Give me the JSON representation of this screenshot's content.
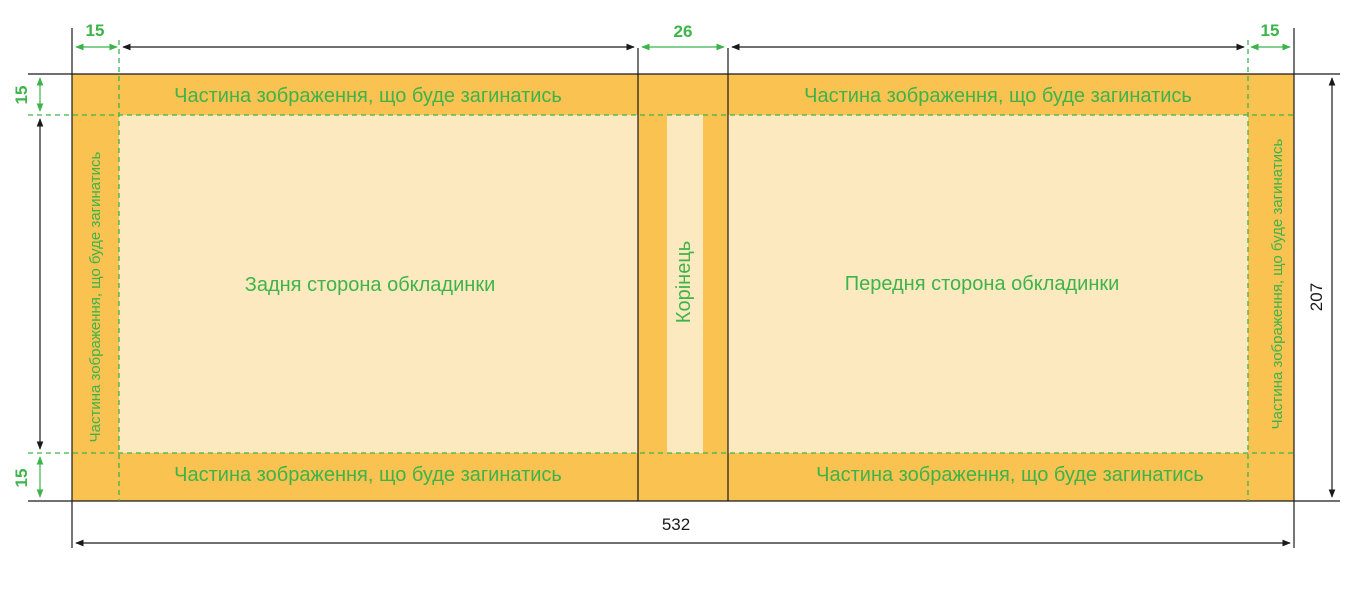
{
  "colors": {
    "fold_area": "#f9c251",
    "cover_area": "#fde9c0",
    "label_green": "#3cb44a",
    "line": "#1a1a1a"
  },
  "labels": {
    "fold_top_left": "Частина зображення, що буде загинатись",
    "fold_top_right": "Частина зображення, що буде загинатись",
    "fold_bottom_left": "Частина зображення, що буде загинатись",
    "fold_bottom_right": "Частина зображення, що буде загинатись",
    "fold_side_left": "Частина зображення, що буде загинатись",
    "fold_side_right": "Частина зображення, що буде загинатись",
    "back_cover": "Задня сторона обкладинки",
    "front_cover": "Передня сторона обкладинки",
    "spine": "Корінець"
  },
  "dimensions": {
    "margin_left": "15",
    "spine_width": "26",
    "margin_right": "15",
    "margin_top": "15",
    "margin_bottom": "15",
    "total_height": "207",
    "total_width": "532"
  }
}
